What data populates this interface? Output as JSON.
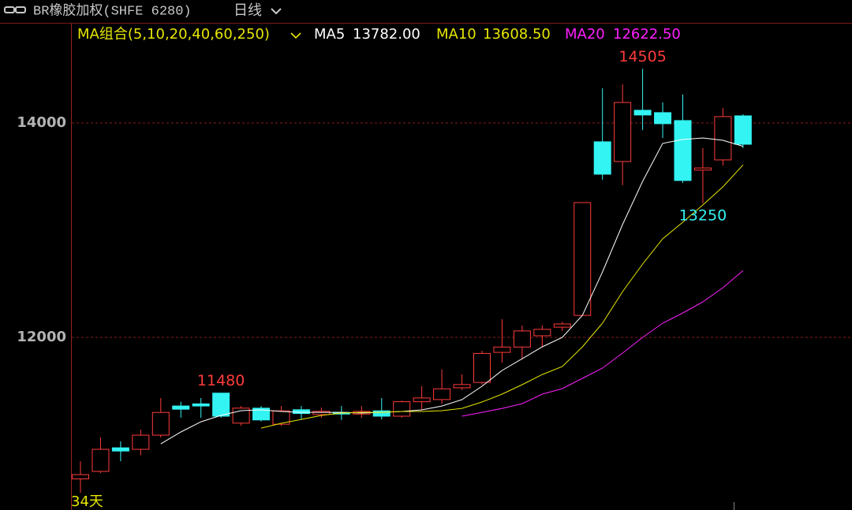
{
  "chart_data": {
    "type": "candlestick",
    "title": "BR橡胶加权(SHFE 6280)",
    "period": "日线",
    "ma_combo": "MA组合(5,10,20,40,60,250)",
    "day_count_label": "34天",
    "up_color": "#ff3b3b",
    "down_color": "#33f3f3",
    "ylim": [
      10390,
      14926
    ],
    "yticks": [
      12000,
      14000
    ],
    "grid": true,
    "open": [
      10680,
      10750,
      10970,
      10956,
      11088,
      11360,
      11380,
      11480,
      11200,
      11340,
      11190,
      11325,
      11280,
      11300,
      11285,
      11315,
      11265,
      11400,
      11420,
      11530,
      11580,
      11860,
      11910,
      12015,
      12095,
      12205,
      13824,
      13640,
      14118,
      14096,
      14022,
      13560,
      13655,
      14066
    ],
    "high": [
      10845,
      11066,
      11030,
      11140,
      11434,
      11400,
      11434,
      11480,
      11360,
      11360,
      11360,
      11360,
      11345,
      11360,
      11360,
      11434,
      11410,
      11545,
      11700,
      11655,
      11875,
      12170,
      12110,
      12110,
      12145,
      13257,
      14324,
      14360,
      14505,
      14191,
      14265,
      13765,
      14140,
      14081
    ],
    "low": [
      10550,
      10735,
      10845,
      10900,
      11066,
      11250,
      11250,
      11250,
      11175,
      11215,
      11175,
      11235,
      11250,
      11230,
      11250,
      11235,
      11250,
      11325,
      11380,
      11510,
      11560,
      11765,
      11800,
      11910,
      12060,
      12205,
      13470,
      13420,
      13934,
      13860,
      13440,
      13250,
      13603,
      13765
    ],
    "close": [
      10720,
      10956,
      10940,
      11088,
      11300,
      11330,
      11360,
      11265,
      11340,
      11230,
      11315,
      11290,
      11310,
      11285,
      11310,
      11265,
      11400,
      11435,
      11520,
      11560,
      11850,
      11910,
      12060,
      12075,
      12125,
      13257,
      13522,
      14191,
      14074,
      13993,
      13463,
      13580,
      14059,
      13801
    ],
    "series": [
      {
        "name": "MA5",
        "color": "#ffffff",
        "values": [
          null,
          null,
          null,
          null,
          11007,
          11118,
          11213,
          11272,
          11316,
          11324,
          11309,
          11301,
          11301,
          11301,
          11294,
          11301,
          11309,
          11324,
          11360,
          11419,
          11544,
          11691,
          11801,
          11912,
          12000,
          12206,
          12610,
          13051,
          13456,
          13809,
          13846,
          13860,
          13838,
          13782
        ],
        "value_labels": [
          null,
          null,
          null,
          null,
          null,
          null,
          null,
          null,
          null,
          null,
          null,
          null,
          null,
          null,
          null,
          null,
          null,
          null,
          null,
          null,
          null,
          null,
          null,
          null,
          null,
          null,
          null,
          null,
          null,
          null,
          null,
          null,
          null,
          "13782.00"
        ]
      },
      {
        "name": "MA10",
        "color": "#e6e600",
        "values": [
          null,
          null,
          null,
          null,
          null,
          null,
          null,
          null,
          null,
          11154,
          11199,
          11235,
          11272,
          11294,
          11301,
          11301,
          11309,
          11309,
          11316,
          11338,
          11397,
          11471,
          11559,
          11654,
          11728,
          11912,
          12132,
          12426,
          12684,
          12919,
          13074,
          13235,
          13404,
          13608.5
        ],
        "value_labels": [
          null,
          null,
          null,
          null,
          null,
          null,
          null,
          null,
          null,
          null,
          null,
          null,
          null,
          null,
          null,
          null,
          null,
          null,
          null,
          null,
          null,
          null,
          null,
          null,
          null,
          null,
          null,
          null,
          null,
          null,
          null,
          null,
          null,
          "13608.50"
        ]
      },
      {
        "name": "MA20",
        "color": "#ff20ff",
        "values": [
          null,
          null,
          null,
          null,
          null,
          null,
          null,
          null,
          null,
          null,
          null,
          null,
          null,
          null,
          null,
          null,
          null,
          null,
          null,
          11265,
          11301,
          11338,
          11382,
          11471,
          11522,
          11618,
          11713,
          11853,
          12000,
          12132,
          12228,
          12331,
          12463,
          12622.5
        ],
        "value_labels": [
          null,
          null,
          null,
          null,
          null,
          null,
          null,
          null,
          null,
          null,
          null,
          null,
          null,
          null,
          null,
          null,
          null,
          null,
          null,
          null,
          null,
          null,
          null,
          null,
          null,
          null,
          null,
          null,
          null,
          null,
          null,
          null,
          null,
          "12622.50"
        ]
      }
    ]
  }
}
